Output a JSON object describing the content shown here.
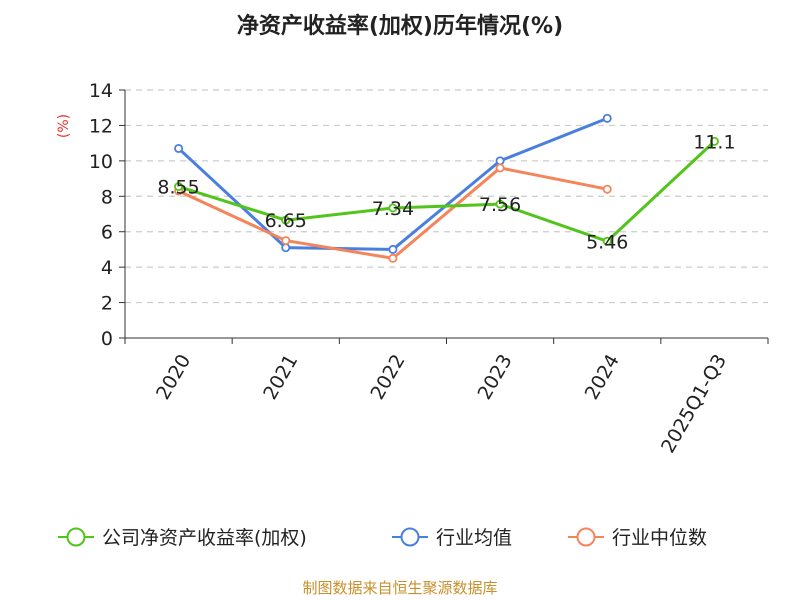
{
  "chart_data": {
    "type": "line",
    "title": "净资产收益率(加权)历年情况(%)",
    "ylabel": "(%)",
    "xlabel": "",
    "categories": [
      "2020",
      "2021",
      "2022",
      "2023",
      "2024",
      "2025Q1-Q3"
    ],
    "ylim": [
      0,
      14
    ],
    "yticks": [
      0,
      2,
      4,
      6,
      8,
      10,
      12,
      14
    ],
    "grid": true,
    "legend_position": "bottom",
    "series": [
      {
        "name": "公司净资产收益率(加权)",
        "color": "#52c41a",
        "values": [
          8.55,
          6.65,
          7.34,
          7.56,
          5.46,
          11.1
        ],
        "labels": [
          "8.55",
          "6.65",
          "7.34",
          "7.56",
          "5.46",
          "11.1"
        ]
      },
      {
        "name": "行业均值",
        "color": "#4a7fe0",
        "values": [
          10.7,
          5.1,
          5.0,
          10.0,
          12.4,
          null
        ]
      },
      {
        "name": "行业中位数",
        "color": "#f5845a",
        "values": [
          8.3,
          5.5,
          4.5,
          9.6,
          8.4,
          null
        ]
      }
    ],
    "source": "制图数据来自恒生聚源数据库"
  }
}
